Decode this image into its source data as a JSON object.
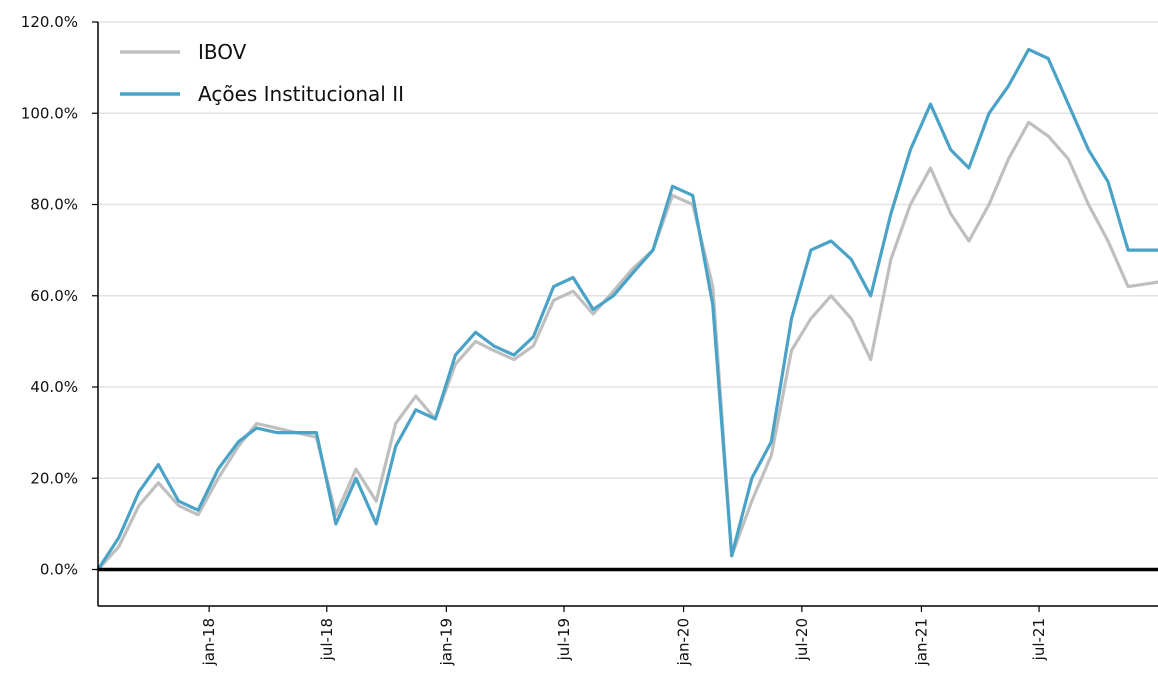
{
  "chart_data": {
    "type": "line",
    "x_type": "date",
    "x": [
      "2017-07-14",
      "2017-08-15",
      "2017-09-15",
      "2017-10-15",
      "2017-11-15",
      "2017-12-15",
      "2018-01-15",
      "2018-02-15",
      "2018-03-15",
      "2018-04-15",
      "2018-05-15",
      "2018-06-15",
      "2018-07-15",
      "2018-08-15",
      "2018-09-15",
      "2018-10-15",
      "2018-11-15",
      "2018-12-15",
      "2019-01-15",
      "2019-02-15",
      "2019-03-15",
      "2019-04-15",
      "2019-05-15",
      "2019-06-15",
      "2019-07-15",
      "2019-08-15",
      "2019-09-15",
      "2019-10-15",
      "2019-11-15",
      "2019-12-15",
      "2020-01-15",
      "2020-02-15",
      "2020-03-15",
      "2020-04-15",
      "2020-05-15",
      "2020-06-15",
      "2020-07-15",
      "2020-08-15",
      "2020-09-15",
      "2020-10-15",
      "2020-11-15",
      "2020-12-15",
      "2021-01-15",
      "2021-02-15",
      "2021-03-15",
      "2021-04-15",
      "2021-05-15",
      "2021-06-15",
      "2021-07-15",
      "2021-08-15",
      "2021-09-15",
      "2021-10-15",
      "2021-11-15",
      "2021-12-31"
    ],
    "series": [
      {
        "name": "IBOV",
        "color": "#bfbfbf",
        "values": [
          0,
          5,
          14,
          19,
          14,
          12,
          20,
          27,
          32,
          31,
          30,
          29,
          12,
          22,
          15,
          32,
          38,
          33,
          45,
          50,
          48,
          46,
          49,
          59,
          61,
          56,
          61,
          66,
          70,
          82,
          80,
          62,
          3,
          15,
          25,
          48,
          55,
          60,
          55,
          46,
          68,
          80,
          88,
          78,
          72,
          80,
          90,
          98,
          95,
          90,
          80,
          72,
          62,
          63
        ]
      },
      {
        "name": "Ações Institucional II",
        "color": "#4aa3c7",
        "values": [
          0,
          7,
          17,
          23,
          15,
          13,
          22,
          28,
          31,
          30,
          30,
          30,
          10,
          20,
          10,
          27,
          35,
          33,
          47,
          52,
          49,
          47,
          51,
          62,
          64,
          57,
          60,
          65,
          70,
          84,
          82,
          58,
          3,
          20,
          28,
          55,
          70,
          72,
          68,
          60,
          78,
          92,
          102,
          92,
          88,
          100,
          106,
          114,
          112,
          102,
          92,
          85,
          70,
          70
        ]
      }
    ],
    "x_ticks": [
      {
        "date": "2018-01-01",
        "label": "jan-18"
      },
      {
        "date": "2018-07-01",
        "label": "jul-18"
      },
      {
        "date": "2019-01-01",
        "label": "jan-19"
      },
      {
        "date": "2019-07-01",
        "label": "jul-19"
      },
      {
        "date": "2020-01-01",
        "label": "jan-20"
      },
      {
        "date": "2020-07-01",
        "label": "jul-20"
      },
      {
        "date": "2021-01-01",
        "label": "jan-21"
      },
      {
        "date": "2021-07-01",
        "label": "jul-21"
      }
    ],
    "xlim": [
      "2017-07-14",
      "2021-12-31"
    ],
    "y_ticks": [
      0,
      20,
      40,
      60,
      80,
      100,
      120
    ],
    "y_tick_labels": [
      "0.0%",
      "20.0%",
      "40.0%",
      "60.0%",
      "80.0%",
      "100.0%",
      "120.0%"
    ],
    "ylim": [
      -8,
      120
    ],
    "grid": "horizontal",
    "zero_line": true,
    "legend_position": "top-left",
    "title": "",
    "xlabel": "",
    "ylabel": ""
  }
}
